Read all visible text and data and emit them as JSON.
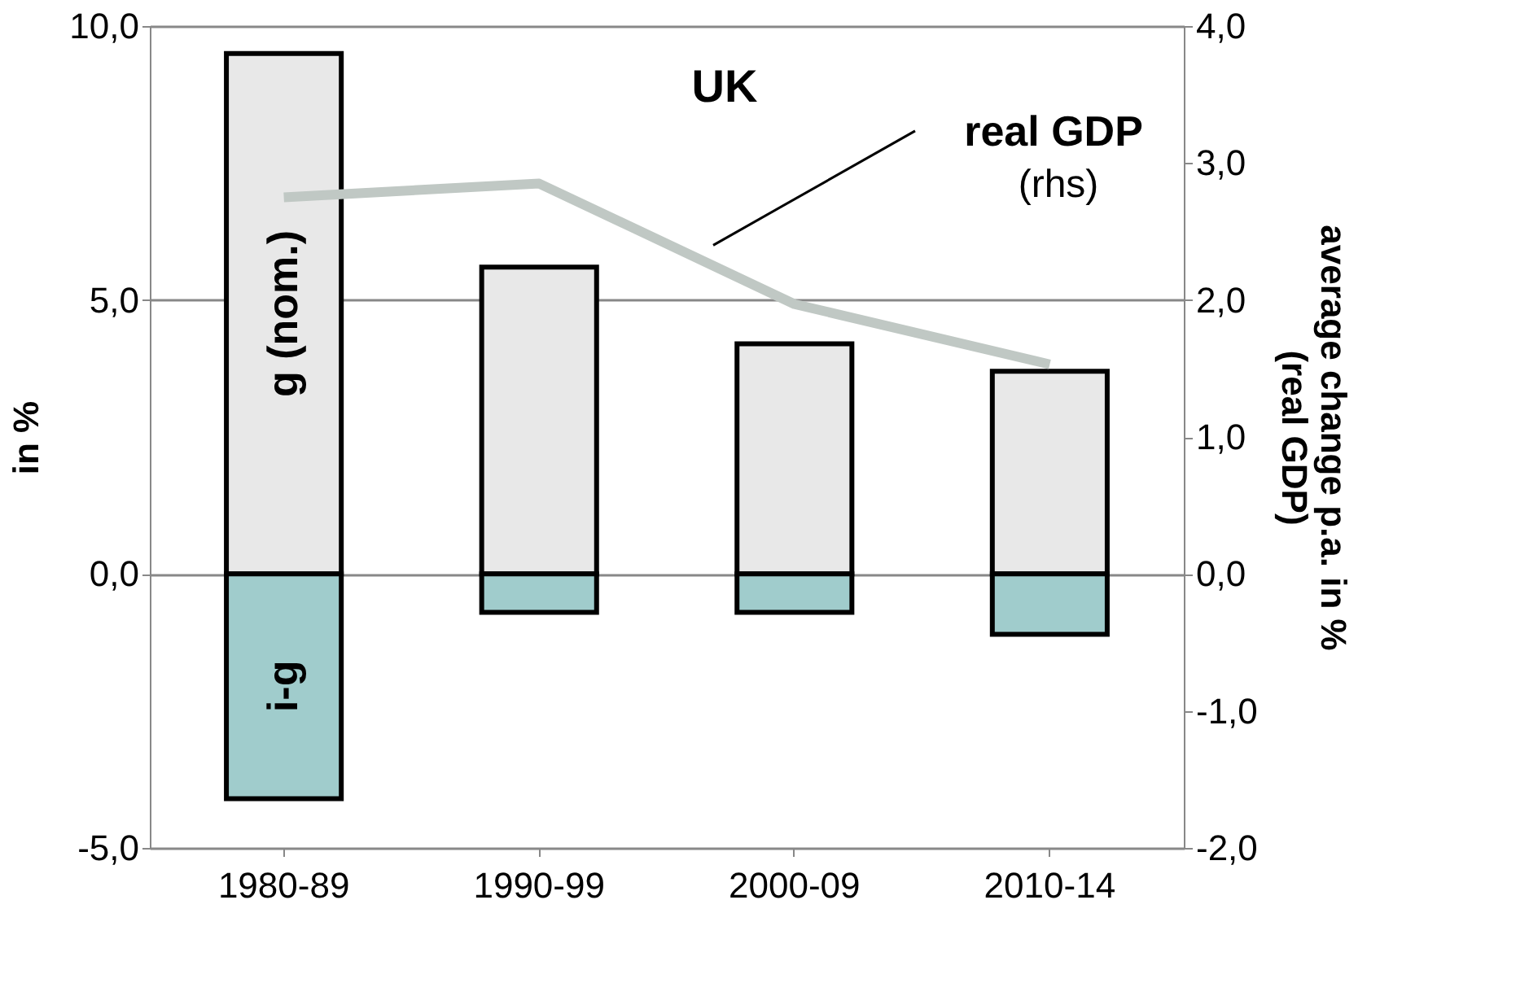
{
  "chart_data": {
    "type": "bar",
    "title": "UK",
    "ylabel": "in %",
    "y2label": "average change p.a. in  % (real GDP)",
    "categories": [
      "1980-89",
      "1990-99",
      "2000-09",
      "2010-14"
    ],
    "stacked": true,
    "series": [
      {
        "name": "g (nom.)",
        "color": "#e8e8e8",
        "values": [
          9.5,
          5.6,
          4.2,
          3.7
        ]
      },
      {
        "name": "i-g",
        "color": "#a0cccc",
        "values": [
          -4.1,
          -0.7,
          -0.7,
          -1.1
        ]
      },
      {
        "type": "line",
        "axis": "y2",
        "color": "#c0c8c4",
        "values": [
          2.75,
          2.85,
          1.97,
          1.53
        ]
      }
    ],
    "ylim": [
      -5,
      10
    ],
    "yticks": [
      {
        "value": -5,
        "label": "-5,0"
      },
      {
        "value": 0,
        "label": "0,0"
      },
      {
        "value": 5,
        "label": "5,0"
      },
      {
        "value": 10,
        "label": "10,0"
      }
    ],
    "y2lim": [
      -2,
      4
    ],
    "y2ticks": [
      {
        "value": -2,
        "label": "-2,0"
      },
      {
        "value": -1,
        "label": "-1,0"
      },
      {
        "value": 0,
        "label": "0,0"
      },
      {
        "value": 1,
        "label": "1,0"
      },
      {
        "value": 2,
        "label": "2,0"
      },
      {
        "value": 3,
        "label": "3,0"
      },
      {
        "value": 4,
        "label": "4,0"
      }
    ],
    "annotations": [
      "real GDP (rhs)"
    ],
    "grid": "y"
  }
}
